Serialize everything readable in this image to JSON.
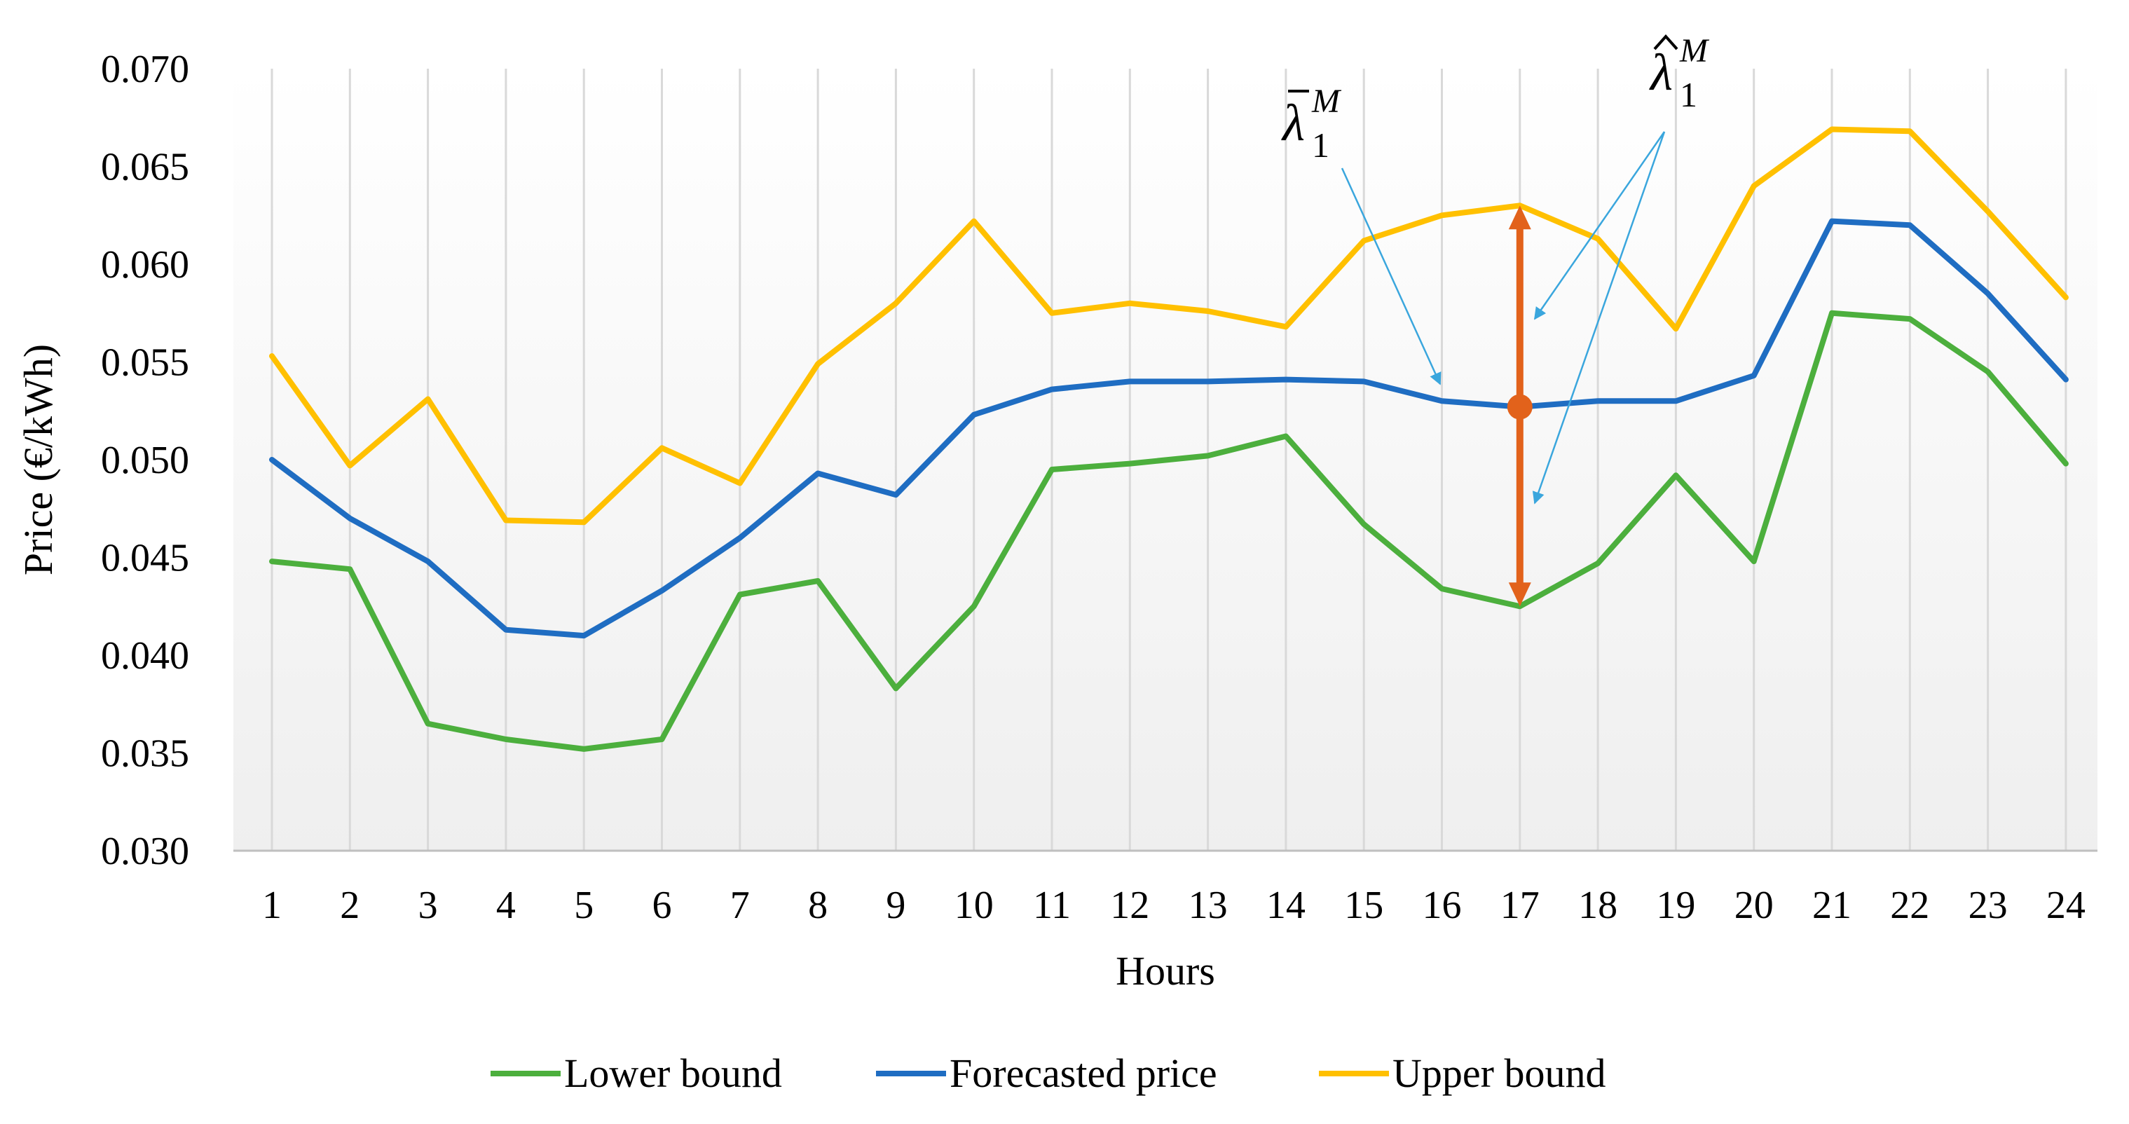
{
  "chart_data": {
    "type": "line",
    "x": [
      1,
      2,
      3,
      4,
      5,
      6,
      7,
      8,
      9,
      10,
      11,
      12,
      13,
      14,
      15,
      16,
      17,
      18,
      19,
      20,
      21,
      22,
      23,
      24
    ],
    "categories": [
      "1",
      "2",
      "3",
      "4",
      "5",
      "6",
      "7",
      "8",
      "9",
      "10",
      "11",
      "12",
      "13",
      "14",
      "15",
      "16",
      "17",
      "18",
      "19",
      "20",
      "21",
      "22",
      "23",
      "24"
    ],
    "series": [
      {
        "name": "Lower bound",
        "color": "#4CAF3D",
        "values": [
          0.0448,
          0.0444,
          0.0365,
          0.0357,
          0.0352,
          0.0357,
          0.0431,
          0.0438,
          0.0383,
          0.0425,
          0.0495,
          0.0498,
          0.0502,
          0.0512,
          0.0467,
          0.0434,
          0.0425,
          0.0447,
          0.0492,
          0.0448,
          0.0575,
          0.0572,
          0.0545,
          0.0498
        ]
      },
      {
        "name": "Forecasted price",
        "color": "#1F6DC2",
        "values": [
          0.05,
          0.047,
          0.0448,
          0.0413,
          0.041,
          0.0433,
          0.046,
          0.0493,
          0.0482,
          0.0523,
          0.0536,
          0.054,
          0.054,
          0.0541,
          0.054,
          0.053,
          0.0527,
          0.053,
          0.053,
          0.0543,
          0.0622,
          0.062,
          0.0585,
          0.0541
        ]
      },
      {
        "name": "Upper bound",
        "color": "#FFC000",
        "values": [
          0.0553,
          0.0497,
          0.0531,
          0.0469,
          0.0468,
          0.0506,
          0.0488,
          0.0549,
          0.058,
          0.0622,
          0.0575,
          0.058,
          0.0576,
          0.0568,
          0.0612,
          0.0625,
          0.063,
          0.0613,
          0.0567,
          0.064,
          0.0669,
          0.0668,
          0.0627,
          0.0583
        ]
      }
    ],
    "ylabel": "Price (€/kWh)",
    "xlabel": "Hours",
    "ylim": [
      0.03,
      0.07
    ],
    "yticks": [
      "0.030",
      "0.035",
      "0.040",
      "0.045",
      "0.050",
      "0.055",
      "0.060",
      "0.065",
      "0.070"
    ],
    "ytick_values": [
      0.03,
      0.035,
      0.04,
      0.045,
      0.05,
      0.055,
      0.06,
      0.065,
      0.07
    ],
    "grid": "vertical",
    "legend_position": "bottom",
    "annotation": {
      "hour": 17,
      "point_value": 0.0527,
      "range_low": 0.0425,
      "range_high": 0.063,
      "color": "#E2621B",
      "arrow_color": "#3AA6DD",
      "label_bar": {
        "base": "λ",
        "sub": "1",
        "sup": "M",
        "accent": "bar"
      },
      "label_hat": {
        "base": "λ",
        "sub": "1",
        "sup": "M",
        "accent": "hat"
      }
    }
  }
}
